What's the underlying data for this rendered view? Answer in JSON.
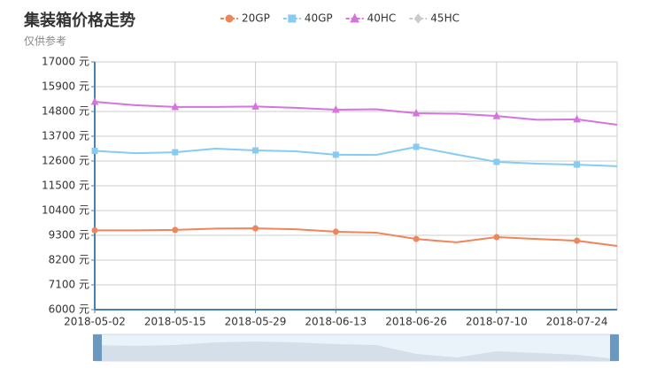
{
  "chart_data": {
    "type": "line",
    "title": "集装箱价格走势",
    "subtitle": "仅供参考",
    "categories": [
      "2018-05-02",
      null,
      "2018-05-15",
      null,
      "2018-05-29",
      null,
      "2018-06-13",
      null,
      "2018-06-26",
      null,
      "2018-07-10",
      null,
      "2018-07-24",
      null
    ],
    "series": [
      {
        "name": "20GP",
        "color": "#f0845a",
        "symbol": "circle",
        "values": [
          9520,
          9520,
          9540,
          9600,
          9610,
          9570,
          9460,
          9420,
          9140,
          8990,
          9220,
          9140,
          9060,
          8830
        ]
      },
      {
        "name": "40GP",
        "color": "#86cbf2",
        "symbol": "square",
        "values": [
          13050,
          12950,
          12990,
          13150,
          13070,
          13030,
          12880,
          12870,
          13230,
          12890,
          12560,
          12480,
          12440,
          12370
        ]
      },
      {
        "name": "40HC",
        "color": "#d474dc",
        "symbol": "triangle",
        "values": [
          15230,
          15080,
          15000,
          15000,
          15020,
          14960,
          14880,
          14900,
          14720,
          14700,
          14600,
          14430,
          14450,
          14210
        ]
      },
      {
        "name": "45HC",
        "color": "#cccccc",
        "symbol": "diamond",
        "hidden": true,
        "values": [
          null,
          null,
          null,
          null,
          null,
          null,
          null,
          null,
          null,
          null,
          null,
          null,
          null,
          null
        ]
      }
    ],
    "ylim": [
      6000,
      17000
    ],
    "yticks": [
      {
        "value": 6000,
        "label": "6000 元"
      },
      {
        "value": 7100,
        "label": "7100 元"
      },
      {
        "value": 8200,
        "label": "8200 元"
      },
      {
        "value": 9300,
        "label": "9300 元"
      },
      {
        "value": 10400,
        "label": "10400 元"
      },
      {
        "value": 11500,
        "label": "11500 元"
      },
      {
        "value": 12600,
        "label": "12600 元"
      },
      {
        "value": 13700,
        "label": "13700 元"
      },
      {
        "value": 14800,
        "label": "14800 元"
      },
      {
        "value": 15900,
        "label": "15900 元"
      },
      {
        "value": 17000,
        "label": "17000 元"
      }
    ],
    "grid": true
  }
}
